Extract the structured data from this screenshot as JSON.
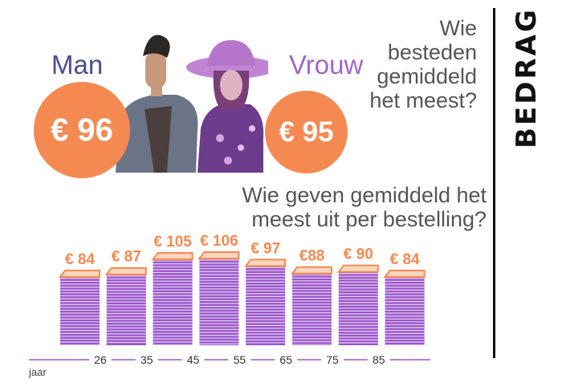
{
  "section_label": "BEDRAG",
  "question_gender": [
    "Wie",
    "besteden",
    "gemiddeld",
    "het meest?"
  ],
  "question_age": [
    "Wie geven gemiddeld het",
    "meest uit per bestelling?"
  ],
  "gender": {
    "man": {
      "label": "Man",
      "value": "€ 96"
    },
    "woman": {
      "label": "Vrouw",
      "value": "€ 95"
    }
  },
  "colors": {
    "orange": "#f48a52",
    "purple": "#9b58c9",
    "man_blue": "#4b4e8f",
    "woman_purple": "#a066c8"
  },
  "chart_data": {
    "type": "bar",
    "title": "Wie geven gemiddeld het meest uit per bestelling?",
    "xlabel": "jaar",
    "ticks": [
      "26",
      "35",
      "45",
      "55",
      "65",
      "75",
      "85"
    ],
    "values": [
      84,
      87,
      105,
      106,
      97,
      88,
      90,
      84
    ],
    "labels": [
      "€ 84",
      "€ 87",
      "€ 105",
      "€ 106",
      "€ 97",
      "€88",
      "€ 90",
      "€ 84"
    ],
    "ylim": [
      0,
      106
    ]
  }
}
